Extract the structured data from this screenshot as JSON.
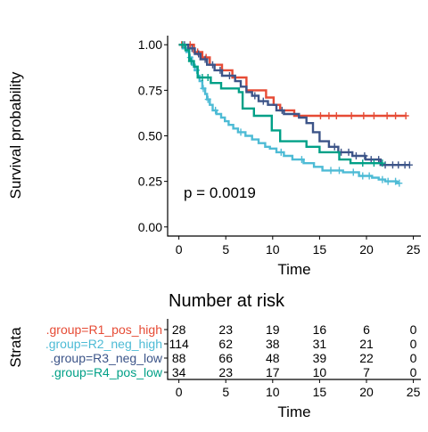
{
  "chart_data": [
    {
      "type": "line",
      "subtype": "kaplan-meier",
      "xlabel": "Time",
      "ylabel": "Survival probability",
      "xlim": [
        -1.2,
        25.8
      ],
      "ylim": [
        -0.05,
        1.05
      ],
      "x_ticks": [
        0,
        5,
        10,
        15,
        20,
        25
      ],
      "x_tick_labels": [
        "0",
        "5",
        "10",
        "15",
        "20",
        "25"
      ],
      "y_ticks": [
        0,
        0.25,
        0.5,
        0.75,
        1
      ],
      "y_tick_labels": [
        "0.00",
        "0.25",
        "0.50",
        "0.75",
        "1.00"
      ],
      "grid": false,
      "legend": "none",
      "annotation": "p = 0.0019",
      "series": [
        {
          "name": ".group=R1_pos_high",
          "color": "#E64B35",
          "steps": [
            [
              0,
              1.0
            ],
            [
              1.6,
              0.96
            ],
            [
              2.5,
              0.93
            ],
            [
              3.3,
              0.89
            ],
            [
              4.6,
              0.86
            ],
            [
              5.7,
              0.82
            ],
            [
              7.2,
              0.75
            ],
            [
              9.3,
              0.71
            ],
            [
              10.1,
              0.67
            ],
            [
              10.8,
              0.64
            ],
            [
              12.3,
              0.61
            ],
            [
              24.2,
              0.61
            ]
          ],
          "censor_times": [
            0.3,
            1.2,
            2.0,
            2.9,
            15.1,
            16.0,
            16.8,
            18.4,
            19.7,
            20.8,
            22.2,
            23.1,
            24.2
          ]
        },
        {
          "name": ".group=R2_neg_high",
          "color": "#4DBBD5",
          "steps": [
            [
              0,
              1.0
            ],
            [
              0.4,
              0.98
            ],
            [
              0.8,
              0.96
            ],
            [
              1.1,
              0.93
            ],
            [
              1.4,
              0.89
            ],
            [
              1.7,
              0.86
            ],
            [
              2.0,
              0.83
            ],
            [
              2.2,
              0.8
            ],
            [
              2.5,
              0.76
            ],
            [
              2.8,
              0.73
            ],
            [
              3.0,
              0.7
            ],
            [
              3.3,
              0.67
            ],
            [
              3.6,
              0.64
            ],
            [
              4.0,
              0.62
            ],
            [
              4.5,
              0.6
            ],
            [
              4.9,
              0.58
            ],
            [
              5.3,
              0.56
            ],
            [
              5.8,
              0.54
            ],
            [
              6.3,
              0.52
            ],
            [
              7.1,
              0.5
            ],
            [
              7.8,
              0.48
            ],
            [
              8.5,
              0.46
            ],
            [
              9.2,
              0.44
            ],
            [
              9.7,
              0.43
            ],
            [
              10.4,
              0.41
            ],
            [
              11.2,
              0.39
            ],
            [
              12.1,
              0.37
            ],
            [
              13.3,
              0.35
            ],
            [
              14.4,
              0.33
            ],
            [
              15.3,
              0.31
            ],
            [
              17.5,
              0.3
            ],
            [
              19.2,
              0.28
            ],
            [
              20.6,
              0.27
            ],
            [
              21.3,
              0.26
            ],
            [
              22.0,
              0.25
            ],
            [
              23.2,
              0.24
            ],
            [
              23.5,
              0.24
            ]
          ],
          "censor_times": [
            1.2,
            1.9,
            2.6,
            3.1,
            3.9,
            6.6,
            10.9,
            13.1,
            16.2,
            17.1,
            18.6,
            19.6,
            20.3,
            21.7,
            22.3,
            23.1,
            23.5
          ]
        },
        {
          "name": ".group=R3_neg_low",
          "color": "#3C5488",
          "steps": [
            [
              0,
              1.0
            ],
            [
              1.0,
              0.98
            ],
            [
              1.7,
              0.95
            ],
            [
              2.3,
              0.92
            ],
            [
              3.0,
              0.89
            ],
            [
              3.8,
              0.86
            ],
            [
              4.6,
              0.83
            ],
            [
              6.0,
              0.8
            ],
            [
              6.6,
              0.77
            ],
            [
              7.2,
              0.74
            ],
            [
              7.8,
              0.72
            ],
            [
              8.5,
              0.69
            ],
            [
              9.5,
              0.67
            ],
            [
              10.4,
              0.64
            ],
            [
              11.2,
              0.62
            ],
            [
              12.8,
              0.6
            ],
            [
              13.6,
              0.57
            ],
            [
              14.3,
              0.52
            ],
            [
              15.0,
              0.47
            ],
            [
              16.0,
              0.44
            ],
            [
              17.0,
              0.41
            ],
            [
              18.5,
              0.39
            ],
            [
              19.9,
              0.37
            ],
            [
              21.5,
              0.34
            ],
            [
              24.6,
              0.34
            ]
          ],
          "censor_times": [
            0.6,
            1.4,
            2.1,
            2.8,
            3.6,
            4.4,
            5.4,
            8.1,
            9.0,
            11.0,
            16.6,
            17.3,
            18.1,
            18.9,
            19.8,
            20.5,
            21.3,
            22.0,
            22.8,
            23.4,
            24.1,
            24.6
          ]
        },
        {
          "name": ".group=R4_pos_low",
          "color": "#00A087",
          "steps": [
            [
              0,
              1.0
            ],
            [
              0.7,
              0.97
            ],
            [
              1.1,
              0.91
            ],
            [
              1.6,
              0.88
            ],
            [
              2.0,
              0.82
            ],
            [
              3.4,
              0.79
            ],
            [
              4.5,
              0.76
            ],
            [
              6.4,
              0.74
            ],
            [
              6.8,
              0.65
            ],
            [
              8.0,
              0.61
            ],
            [
              9.9,
              0.53
            ],
            [
              10.8,
              0.47
            ],
            [
              13.6,
              0.44
            ],
            [
              15.0,
              0.41
            ],
            [
              17.1,
              0.37
            ],
            [
              18.3,
              0.35
            ],
            [
              21.7,
              0.35
            ]
          ],
          "censor_times": [
            0.4,
            1.3,
            2.5,
            3.1,
            19.6,
            20.8,
            21.7
          ]
        }
      ]
    },
    {
      "type": "table",
      "title": "Number at risk",
      "xlabel": "Time",
      "ylabel": "Strata",
      "x_ticks": [
        0,
        5,
        10,
        15,
        20,
        25
      ],
      "x_tick_labels": [
        "0",
        "5",
        "10",
        "15",
        "20",
        "25"
      ],
      "rows": [
        {
          "label": ".group=R1_pos_high",
          "color": "#E64B35",
          "values": [
            "28",
            "23",
            "19",
            "16",
            "6",
            "0"
          ]
        },
        {
          "label": ".group=R2_neg_high",
          "color": "#4DBBD5",
          "values": [
            "114",
            "62",
            "38",
            "31",
            "21",
            "0"
          ]
        },
        {
          "label": ".group=R3_neg_low",
          "color": "#3C5488",
          "values": [
            "88",
            "66",
            "48",
            "39",
            "22",
            "0"
          ]
        },
        {
          "label": ".group=R4_pos_low",
          "color": "#00A087",
          "values": [
            "34",
            "23",
            "17",
            "10",
            "7",
            "0"
          ]
        }
      ]
    }
  ]
}
